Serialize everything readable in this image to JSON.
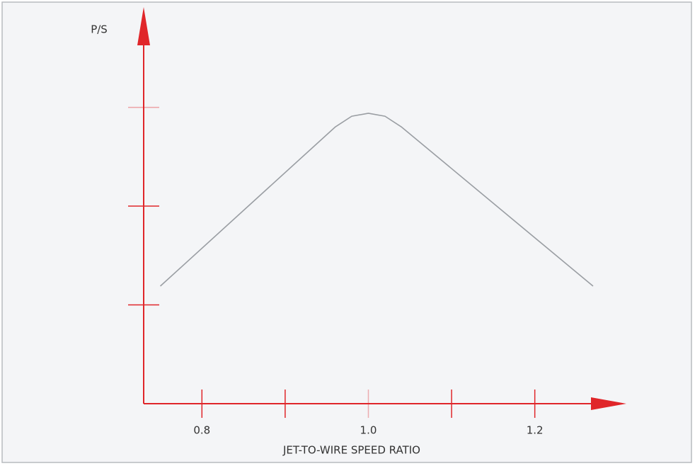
{
  "chart_data": {
    "type": "line",
    "x_label": "JET-TO-WIRE SPEED RATIO",
    "y_label": "P/S",
    "x": [
      0.75,
      0.96,
      0.98,
      1.0,
      1.02,
      1.04,
      1.27
    ],
    "series": [
      {
        "color": "#9a9ea3",
        "values": [
          1.19,
          2.8,
          2.91,
          2.94,
          2.91,
          2.8,
          1.19
        ]
      }
    ],
    "xlim": [
      0.73,
      1.31
    ],
    "xticks": [
      0.8,
      {
        "value": 1,
        "label": "1.0"
      },
      1.2
    ],
    "xminor_ticks": [
      0.9,
      1.1
    ],
    "ylim": [
      0,
      3.8
    ],
    "yticks": [
      1,
      2,
      3
    ],
    "show_ytick_labels": false,
    "axis_color": "#e0262a",
    "grid": false
  }
}
